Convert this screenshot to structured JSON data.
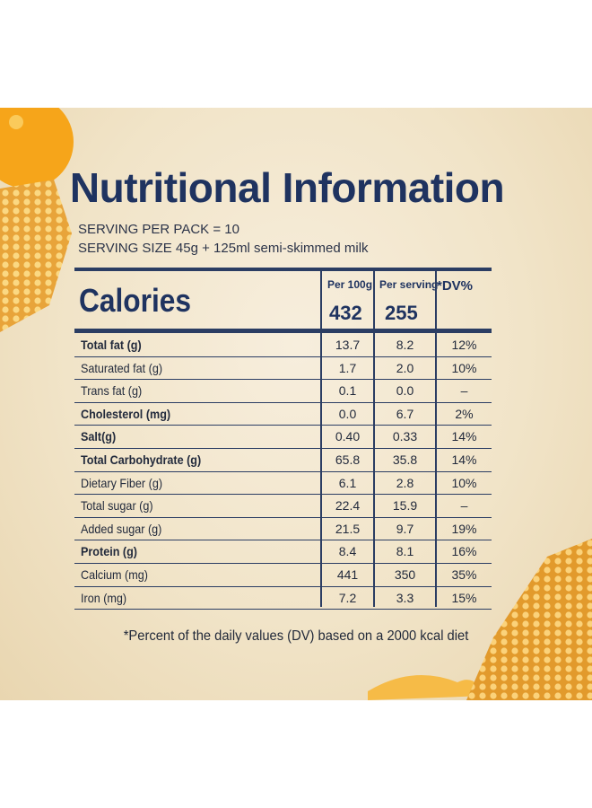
{
  "title": "Nutritional Information",
  "serving_per_pack": "SERVING PER PACK = 10",
  "serving_size": "SERVING SIZE 45g + 125ml semi-skimmed milk",
  "table": {
    "calories_label": "Calories",
    "col_per100g": "Per 100g",
    "col_perserving": "Per serving",
    "col_dv": "*DV%",
    "calories_per100g": "432",
    "calories_perserving": "255",
    "rows": [
      {
        "name": "Total fat (g)",
        "bold": true,
        "per100g": "13.7",
        "perserving": "8.2",
        "dv": "12%"
      },
      {
        "name": "Saturated fat (g)",
        "bold": false,
        "per100g": "1.7",
        "perserving": "2.0",
        "dv": "10%"
      },
      {
        "name": "Trans fat (g)",
        "bold": false,
        "per100g": "0.1",
        "perserving": "0.0",
        "dv": "–"
      },
      {
        "name": "Cholesterol (mg)",
        "bold": true,
        "per100g": "0.0",
        "perserving": "6.7",
        "dv": "2%"
      },
      {
        "name": "Salt(g)",
        "bold": true,
        "per100g": "0.40",
        "perserving": "0.33",
        "dv": "14%"
      },
      {
        "name": "Total Carbohydrate (g)",
        "bold": true,
        "per100g": "65.8",
        "perserving": "35.8",
        "dv": "14%"
      },
      {
        "name": "Dietary Fiber (g)",
        "bold": false,
        "per100g": "6.1",
        "perserving": "2.8",
        "dv": "10%"
      },
      {
        "name": "Total sugar (g)",
        "bold": false,
        "per100g": "22.4",
        "perserving": "15.9",
        "dv": "–"
      },
      {
        "name": "Added sugar (g)",
        "bold": false,
        "per100g": "21.5",
        "perserving": "9.7",
        "dv": "19%"
      },
      {
        "name": "Protein (g)",
        "bold": true,
        "per100g": "8.4",
        "perserving": "8.1",
        "dv": "16%"
      },
      {
        "name": "Calcium (mg)",
        "bold": false,
        "per100g": "441",
        "perserving": "350",
        "dv": "35%"
      },
      {
        "name": "Iron (mg)",
        "bold": false,
        "per100g": "7.2",
        "perserving": "3.3",
        "dv": "15%"
      }
    ]
  },
  "footnote": "*Percent of the daily values (DV) based on a 2000 kcal diet",
  "colors": {
    "navy": "#1f3360",
    "honey": "#f4a81c",
    "background": "#f3e7cf"
  }
}
